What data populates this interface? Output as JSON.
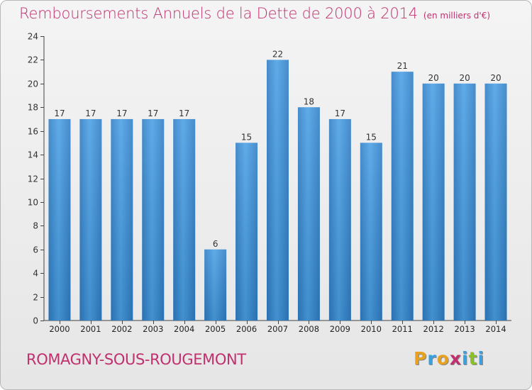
{
  "chart_data": {
    "type": "bar",
    "title": "Remboursements Annuels de la Dette de 2000 à 2014",
    "subtitle": "(en milliers d'€)",
    "xlabel": "",
    "ylabel": "",
    "categories": [
      "2000",
      "2001",
      "2002",
      "2003",
      "2004",
      "2005",
      "2006",
      "2007",
      "2008",
      "2009",
      "2010",
      "2011",
      "2012",
      "2013",
      "2014"
    ],
    "values": [
      17,
      17,
      17,
      17,
      17,
      6,
      15,
      22,
      18,
      17,
      15,
      21,
      20,
      20,
      20
    ],
    "ylim": [
      0,
      24
    ],
    "yticks": [
      0,
      2,
      4,
      6,
      8,
      10,
      12,
      14,
      16,
      18,
      20,
      22,
      24
    ],
    "grid": false,
    "bar_color": "#3d8fd6"
  },
  "footer": {
    "place": "ROMAGNY-SOUS-ROUGEMONT"
  },
  "logo": {
    "text": "Proxiti",
    "letters": [
      {
        "ch": "P",
        "color": "#e8a21d"
      },
      {
        "ch": "r",
        "color": "#3aa0dd"
      },
      {
        "ch": "o",
        "color": "#e8a21d"
      },
      {
        "ch": "x",
        "color": "#c0306e"
      },
      {
        "ch": "i",
        "color": "#3aa0dd"
      },
      {
        "ch": "t",
        "color": "#8bbf2a"
      },
      {
        "ch": "i",
        "color": "#3aa0dd"
      }
    ]
  }
}
